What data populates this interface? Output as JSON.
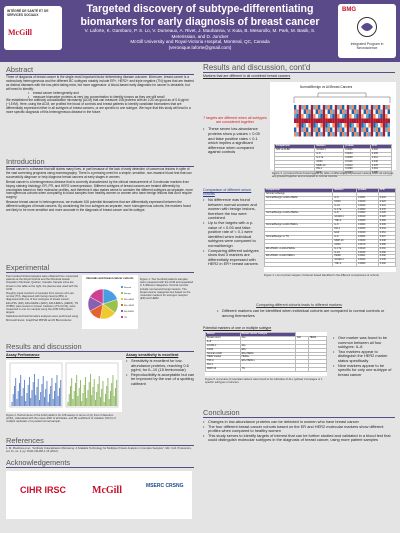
{
  "header": {
    "title": "Targeted discovery of subtype-differentiating biomarkers for early diagnosis of breast cancer",
    "authors": "V. Laforte, K. Gambaro, P. S. Lo, V. Dumeaux, A. Rivet, J. Mauhanna, V. Kuta, B. Mesurollo, M. Park, M. Basik, S. Meterissian, and D. Juncker",
    "affiliation": "McGill University and Royal-Victoria Hospital, Montreal, QC, Canada",
    "email": "(veronique.laforte@gmail.com)",
    "logo_left_1": "INTÉGRÉ DE SANTÉ ET DE SERVICES SOCIAUX",
    "logo_left_2": "McGill",
    "logo_right_1": "BMG",
    "logo_right_2": "Integrated Program in Neuroscience"
  },
  "abstract": {
    "heading": "Abstract",
    "p1": "Three of diagnosis of breast cancer is the single most important factor determining disease outcome. Moreover, breast cancer is a molecularly heterogeneous and the different BC subtypes notably include ER+, HER2+ and triple negative (TN) types that are treated as distinct diseases with the low-yield dating exist, but more aggressive. A blood-based early diagnostic for cancer is desirable, but will need to identify:",
    "bullets": [
      "breast cancer heterogeneity and",
      "measure biomarker proteins at very low concentration to identify tumors as they are still small"
    ],
    "p2": "We established the antibody colocalization microarray (ACM) that can measure 108 proteins with an LOD as good as of 0.6 pg/ml (~15 fM). Here, using the ACM, we profiled the blood of controls and breast patients to identify candidate biomarkers that are differentially expressed either in all subtypes of breast cancers, or are specific to one subtype. We hope that this study will lead to a more specific diagnosis of this heterogeneous disease in the future."
  },
  "intro": {
    "heading": "Introduction",
    "p1": "Breast cancer is a disease that still claims many lives, in part because of the lack of early detection of cancerous lesions in spite of the vast screening programs using mammography. There is a pressing need for a simple, sensitive, non-invasive blood test that can successfully diagnose or help diagnose breast cancers at early stages in women.",
    "p2": "Breast cancer is a heterogeneous disease that is currently characterized by the clinical measurement of 3 molecular markers from biopsy staining histology: ER, PR, and HER2 overexpression. Different subtypes of breast cancers are treated differently by oncologists based on their molecular profiles, and therefore it also makes sense to consider the different subtypes as separate, more homogeneous cohorts when comparing to blood samples from healthy women or women who have benign lesions that don't require surgery.",
    "p3": "Because breast cancer is heterogeneous, we evaluate 108 potential biomarkers that are differentially expressed between the different subtypes of breast cancers. By considering the four subtypes as separate, more homogeneous cohorts, the markers found are likely to be more sensitive and more accurate in the diagnosis of breast cancer and its subtype."
  },
  "experimental": {
    "heading": "Experimental",
    "p1": "Two hundred clinical samples were obtained from consented patients at the Royal Victoria and the Montreal Jewish Hospital in Montreal, Quebec, Canada. Sample sizes are shown in the table at the right, the plasma was used with the ACM.",
    "p2": "Roughly equal numbers of samples from women who are normal (TN), diagnosed with benign lesions (BN) or diagnosed with one of four subtypes of breast cancer: ER+/PR+ (ER), ER+/HER2+ (ER2), ER-/HER2+ (HER2), TN (TNBC) were tested on Ocean Cadmium (TS-CC32), were measured in one run sample using the ACM 108-protein targets.",
    "p3": "Statistical and bioinformatics analyses were performed using Microsoft Excel, GraphPad PRISM and R Bioconductor.",
    "pie_title": "Normals and breast cancer cohorts",
    "pie_caption": "Figure 1. Two hundred patients samples were measured with the ACM and separated in 6 different categories. Normal controls include normal and benign lesions. The breast cancer categories are based on the molecular markers for estrogen receptor (ER) and HER2."
  },
  "results": {
    "heading": "Results and discussion",
    "assay_heading": "Assay Performance",
    "assay_sens_heading": "Assay sensitivity is excellent",
    "assay_bullets": [
      "Sensitivity is excellent for low-abundance proteins, reaching 0.6 pg/ml, for IL-10 (15 femtomolar)",
      "Reproducibility is acceptable but can be improved by the use of a spotting calibrant"
    ],
    "assay_caption": "Figure 2. Performance of the ACM platform for 108 assays in terms of (A) limit of detection (LOD), (calculated with the mean+3SD of all blanks, and (B) coefficient of variation (%CV) of multiple replicates of a pooled normal sample."
  },
  "references": {
    "heading": "References",
    "r1": "1. M. Pla-Roca et al., \"Antibody Colocalization Microarray: A Scalable Technology for Multiplex Protein Analysis in Complex Samples\", Mol. Cell. Proteomics, vol. 11, no. 4, pp. M111.011460-1-15 (2012)."
  },
  "ack": {
    "heading": "Acknowledgements",
    "l1": "CIHR IRSC",
    "l2": "McGill",
    "l3": "MSERC CRSNG"
  },
  "right": {
    "heading": "Results and discussion, cont'd",
    "markers_all_heading": "Markers that are different in all combined breast cancers",
    "heatmap_title": "Normal/Benign vs All Breast Cancers",
    "seven_biomarkers": "7 targets are different when all subtypes are considered together",
    "combined_bullets": [
      "These seven low-abundance proteins show p-values < 0.05 and false positive rates < 0.1 which implies a significant difference when compared against controls"
    ],
    "caption3": "Figure 3. (a) Hierarchical clustering and (b) table of differentially expressed markers when all subtypes are grouped together and compared to normal controls.",
    "compare_heading": "Comparison of different serum cohorts",
    "compare_bullets": [
      "No difference was found between normal women and women with benign lesions, therefore the two were combined",
      "Up to five targets with a p-value of < 0.05 and false positive rate of < 0.1 were identified when individual subtypes were compared to normal/benign",
      "Comparing different subtypes show that 3 markers are differentially expressed with HER2 in ER+ breast cancers"
    ],
    "caption4": "Figure 4. List of protein targets of interest based identified in the different comparisons of cohorts",
    "subtype_heading": "Comparing different cohorts leads to different markers",
    "subtype_bullets": [
      "Different markers can be identified when individual cohorts are compared to normal controls or among themselves"
    ],
    "potential_heading": "Potential markers of one or multiple subtype",
    "one_marker_bullets": [
      "One marker was found to be common between all four subtypes: IL-8",
      "Two markers appear to distinguish the HER2 marker status specifically",
      "Nine markers appear to be specific for only one subtype of breast cancer"
    ],
    "caption5": "Figure 5. A preview of potential markers were found to be indicative of ALL (yellow) 2 Lineages or 1 specific subtypes of cancers.",
    "conclusion_heading": "Conclusion",
    "conclusion_bullets": [
      "Changes in low-abundance proteins can be detected in women who have breast cancer",
      "The four different breast cancer cohorts based on the ER and HER2 molecular markers show different profiles when compared to healthy women",
      "This study serves to identify targets of interest that can be further studied and validated in a blood test that could distinguish molecular subtypes in the diagnosis of breast cancer, using more patient samples"
    ]
  },
  "tbl3": {
    "head": [
      "Comparison",
      "Markers",
      "p-value",
      "FPR"
    ],
    "rows": [
      [
        "N/B vs All BC",
        "sICAM-1",
        "0.0001",
        "0.003"
      ],
      [
        "",
        "IL-8",
        "0.0003",
        "0.005"
      ],
      [
        "",
        "IL-17a",
        "0.0009",
        "0.012"
      ],
      [
        "",
        "CD43",
        "0.0110",
        "0.046"
      ],
      [
        "",
        "MMP-10",
        "0.0210",
        "0.078"
      ],
      [
        "",
        "PAI-1",
        "0.0390",
        "0.091"
      ],
      [
        "",
        "EGF",
        "0.0410",
        "0.098"
      ]
    ]
  },
  "tbl4": {
    "head": [
      "Comparison",
      "Markers",
      "p-value",
      "FPR"
    ],
    "rows": [
      [
        "Normal vs Benign",
        "",
        "",
        ""
      ],
      [
        "Normal/Benign vs ER+/HER2-",
        "IL-8",
        "0.0001",
        "0.004"
      ],
      [
        "",
        "CD43",
        "0.0010",
        "0.023"
      ],
      [
        "",
        "IL-10",
        "0.0020",
        "0.041"
      ],
      [
        "",
        "IL-17a",
        "0.0050",
        "0.078"
      ],
      [
        "Normal/Benign vs ER+/HER2+",
        "IL-8",
        "0.0002",
        "0.005"
      ],
      [
        "",
        "sICAM-1",
        "0.0010",
        "0.026"
      ],
      [
        "",
        "TNF-b",
        "0.0060",
        "0.082"
      ],
      [
        "Normal/Benign vs ER-/HER2+",
        "IL-8",
        "0.0003",
        "0.006"
      ],
      [
        "",
        "PAI-1",
        "0.0020",
        "0.034"
      ],
      [
        "",
        "EGF",
        "0.0040",
        "0.061"
      ],
      [
        "Normal/Benign vs TN",
        "IL-8",
        "0.0004",
        "0.007"
      ],
      [
        "",
        "MMP-10",
        "0.0030",
        "0.048"
      ],
      [
        "",
        "CD43",
        "0.0070",
        "0.089"
      ],
      [
        "ER+/HER2- vs ER+/HER2+",
        "IL-17a",
        "0.0010",
        "0.031"
      ],
      [
        "",
        "IL-10",
        "0.0040",
        "0.068"
      ],
      [
        "ER+/HER2- vs ER-/HER2+",
        "HER2",
        "0.0001",
        "0.002"
      ],
      [
        "",
        "sICAM-1",
        "0.0020",
        "0.039"
      ],
      [
        "",
        "TNF-b",
        "0.0080",
        "0.092"
      ]
    ]
  },
  "tbl5": {
    "head": [
      "Marker",
      "Breast cancer subtype"
    ],
    "rows": [
      [
        "Breast tumor",
        "ALL",
        "ER",
        "HER2"
      ],
      [
        "IL-8",
        "",
        "",
        ""
      ],
      [
        "sICAM-1",
        "ALL",
        "",
        ""
      ],
      [
        "CD43",
        "ER+",
        "",
        ""
      ],
      [
        "Normal vs ER",
        "ER+/HER2-",
        "",
        ""
      ],
      [
        "HER2 marker",
        "HER2+",
        "",
        ""
      ],
      [
        "TNF-b",
        "ER+/HER2+",
        "",
        ""
      ],
      [
        "PAI-1",
        "",
        "",
        ""
      ],
      [
        "MMP-10",
        "TN",
        "",
        ""
      ]
    ]
  },
  "pie": {
    "labels": [
      "Normal",
      "Benign",
      "ER+/HER2-",
      "ER+/HER2+",
      "ER-/HER2+",
      "TN"
    ],
    "values": [
      40,
      30,
      36,
      28,
      32,
      34
    ],
    "colors": [
      "#4a9de0",
      "#9ac24a",
      "#f0c830",
      "#e6622c",
      "#8a5fb0",
      "#d04090"
    ]
  },
  "colors": {
    "header": "#5b4a8a",
    "accent": "#d21b1b",
    "section_line": "#5b4a8a"
  }
}
